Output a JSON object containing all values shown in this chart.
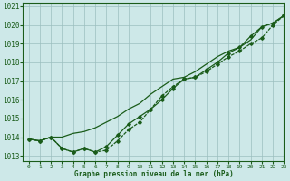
{
  "title": "Graphe pression niveau de la mer (hPa)",
  "bg_color": "#cde8e8",
  "grid_color": "#9bbfbf",
  "line_color": "#1a5c1a",
  "xlim": [
    -0.5,
    23
  ],
  "ylim": [
    1012.7,
    1021.2
  ],
  "yticks": [
    1013,
    1014,
    1015,
    1016,
    1017,
    1018,
    1019,
    1020,
    1021
  ],
  "xticks": [
    0,
    1,
    2,
    3,
    4,
    5,
    6,
    7,
    8,
    9,
    10,
    11,
    12,
    13,
    14,
    15,
    16,
    17,
    18,
    19,
    20,
    21,
    22,
    23
  ],
  "series1_x": [
    0,
    1,
    2,
    3,
    4,
    5,
    6,
    7,
    8,
    9,
    10,
    11,
    12,
    13,
    14,
    15,
    16,
    17,
    18,
    19,
    20,
    21,
    22,
    23
  ],
  "series1_y": [
    1013.9,
    1013.8,
    1014.0,
    1014.0,
    1014.2,
    1014.3,
    1014.5,
    1014.8,
    1015.1,
    1015.5,
    1015.8,
    1016.3,
    1016.7,
    1017.1,
    1017.2,
    1017.5,
    1017.9,
    1018.3,
    1018.6,
    1018.8,
    1019.2,
    1019.9,
    1020.1,
    1020.5
  ],
  "series2_x": [
    0,
    1,
    2,
    3,
    4,
    5,
    6,
    7,
    8,
    9,
    10,
    11,
    12,
    13,
    14,
    15,
    16,
    17,
    18,
    19,
    20,
    21,
    22,
    23
  ],
  "series2_y": [
    1013.9,
    1013.8,
    1014.0,
    1013.4,
    1013.2,
    1013.4,
    1013.2,
    1013.5,
    1014.1,
    1014.7,
    1015.1,
    1015.5,
    1016.0,
    1016.6,
    1017.1,
    1017.2,
    1017.6,
    1018.0,
    1018.5,
    1018.8,
    1019.4,
    1019.9,
    1020.1,
    1020.5
  ],
  "series3_x": [
    0,
    1,
    2,
    3,
    4,
    5,
    6,
    7,
    8,
    9,
    10,
    11,
    12,
    13,
    14,
    15,
    16,
    17,
    18,
    19,
    20,
    21,
    22,
    23
  ],
  "series3_y": [
    1013.9,
    1013.8,
    1014.0,
    1013.4,
    1013.2,
    1013.4,
    1013.2,
    1013.3,
    1013.8,
    1014.4,
    1014.8,
    1015.5,
    1016.2,
    1016.7,
    1017.1,
    1017.2,
    1017.5,
    1017.9,
    1018.3,
    1018.6,
    1019.0,
    1019.3,
    1020.0,
    1020.5
  ]
}
